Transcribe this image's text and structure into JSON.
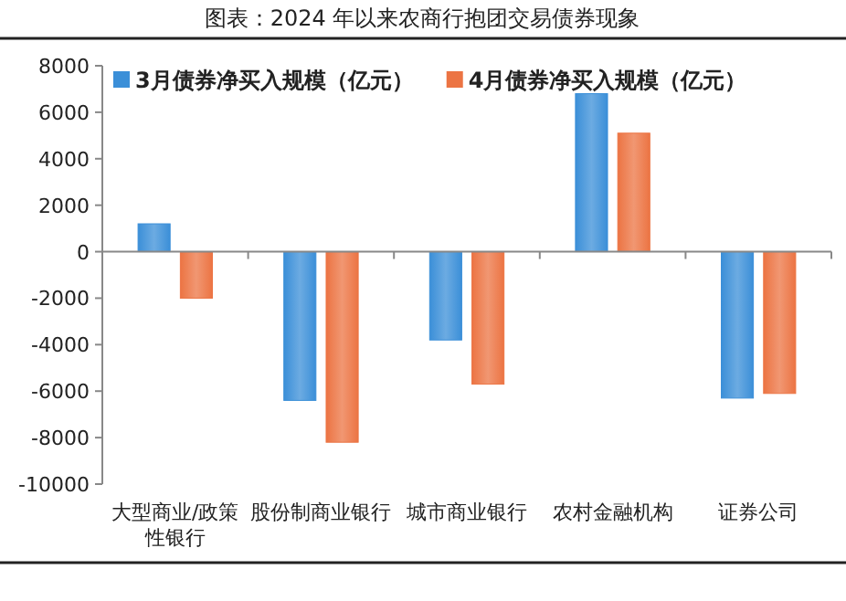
{
  "chart_data": {
    "type": "bar",
    "title": "图表：2024 年以来农商行抱团交易债券现象",
    "categories": [
      "大型商业/政策性银行",
      "股份制商业银行",
      "城市商业银行",
      "农村金融机构",
      "证券公司"
    ],
    "series": [
      {
        "name": "3月债券净买入规模（亿元）",
        "color": "#3b8fd8",
        "values": [
          1200,
          -6400,
          -3800,
          6800,
          -6300
        ]
      },
      {
        "name": "4月债券净买入规模（亿元）",
        "color": "#ec7443",
        "values": [
          -2000,
          -8200,
          -5700,
          5100,
          -6100
        ]
      }
    ],
    "ylim": [
      -10000,
      8000
    ],
    "yticks": [
      -10000,
      -8000,
      -6000,
      -4000,
      -2000,
      0,
      2000,
      4000,
      6000,
      8000
    ],
    "legend": "top"
  }
}
